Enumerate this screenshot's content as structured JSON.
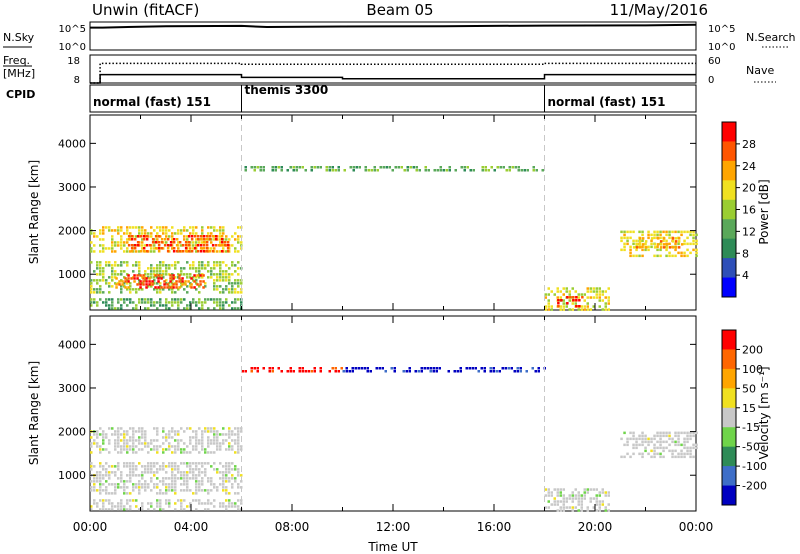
{
  "header": {
    "station": "Unwin (fitACF)",
    "beam": "Beam 05",
    "date": "11/May/2016"
  },
  "status_panels": {
    "nsky_label": "N.Sky",
    "nsky_ticks": [
      "10^5",
      "10^0"
    ],
    "nsearch_label": "N.Search",
    "nsearch_ticks": [
      "10^5",
      "10^0"
    ],
    "freq_label": "Freq.",
    "freq_unit": "[MHz]",
    "freq_ticks": [
      "18",
      "8"
    ],
    "nave_label": "Nave",
    "nave_ticks": [
      "60",
      "0"
    ],
    "cpid_label": "CPID",
    "modes": [
      {
        "label": "normal (fast) 151",
        "start_h": 0,
        "end_h": 6
      },
      {
        "label": "themis 3300",
        "start_h": 6,
        "end_h": 18
      },
      {
        "label": "normal (fast) 151",
        "start_h": 18,
        "end_h": 24
      }
    ]
  },
  "colors": {
    "power": [
      "#0000ff",
      "#2e4fb8",
      "#2e8b57",
      "#5aa85a",
      "#9acd32",
      "#f0e020",
      "#ffa500",
      "#ff5500",
      "#ff0000"
    ],
    "velocity": [
      "#0000c0",
      "#3e6ec8",
      "#2e8b57",
      "#6fd44a",
      "#c8c8c8",
      "#f0e020",
      "#ffa500",
      "#ff6600",
      "#ff0000"
    ]
  },
  "chart_data": [
    {
      "type": "line",
      "title": "N.Sky / N.Search",
      "x": [
        0,
        0.5,
        3,
        6,
        7,
        10,
        14,
        18,
        22,
        24
      ],
      "series": [
        {
          "name": "N.Sky",
          "values": [
            80,
            80,
            85,
            86,
            82,
            84,
            85,
            87,
            88,
            90
          ]
        },
        {
          "name": "N.Search",
          "values": [
            null,
            null,
            null,
            null,
            null,
            null,
            null,
            null,
            null,
            null
          ]
        }
      ],
      "xlim": [
        0,
        24
      ],
      "ylim": [
        0,
        100
      ]
    },
    {
      "type": "line",
      "title": "Freq / Nave",
      "x": [
        0,
        0.4,
        6,
        10,
        18,
        24
      ],
      "series": [
        {
          "name": "Freq.",
          "values": [
            8,
            11,
            10,
            9.5,
            11,
            11
          ]
        },
        {
          "name": "Nave",
          "values": [
            0,
            42,
            40,
            40,
            42,
            42
          ]
        }
      ],
      "xlim": [
        0,
        24
      ]
    },
    {
      "type": "heatmap",
      "ylabel": "Slant Range [km]",
      "xlim": [
        0,
        24
      ],
      "ylim": [
        180,
        4650
      ],
      "yticks": [
        1000,
        2000,
        3000,
        4000
      ],
      "colorbar": {
        "label": "Power [dB]",
        "ticks": [
          "4",
          "8",
          "12",
          "16",
          "20",
          "24",
          "28"
        ],
        "range": [
          0,
          30
        ]
      },
      "regions": [
        {
          "t0": 0.0,
          "t1": 6.0,
          "r0": 1500,
          "r1": 2100,
          "lvl": 5
        },
        {
          "t0": 1.5,
          "t1": 5.5,
          "r0": 1550,
          "r1": 1900,
          "lvl": 7
        },
        {
          "t0": 0.0,
          "t1": 6.0,
          "r0": 600,
          "r1": 1300,
          "lvl": 4
        },
        {
          "t0": 1.0,
          "t1": 4.5,
          "r0": 700,
          "r1": 1000,
          "lvl": 7
        },
        {
          "t0": 0.0,
          "t1": 6.0,
          "r0": 200,
          "r1": 450,
          "lvl": 3
        },
        {
          "t0": 6.0,
          "t1": 18.0,
          "r0": 3400,
          "r1": 3480,
          "lvl": 3
        },
        {
          "t0": 18.0,
          "t1": 20.5,
          "r0": 200,
          "r1": 700,
          "lvl": 5
        },
        {
          "t0": 18.5,
          "t1": 19.5,
          "r0": 250,
          "r1": 500,
          "lvl": 8
        },
        {
          "t0": 21.0,
          "t1": 24.0,
          "r0": 1400,
          "r1": 2000,
          "lvl": 5
        },
        {
          "t0": 21.5,
          "t1": 23.5,
          "r0": 1600,
          "r1": 1850,
          "lvl": 6
        }
      ]
    },
    {
      "type": "heatmap",
      "xlabel": "Time UT",
      "ylabel": "Slant Range [km]",
      "xlim": [
        0,
        24
      ],
      "ylim": [
        180,
        4650
      ],
      "xticks": [
        "00:00",
        "04:00",
        "08:00",
        "12:00",
        "16:00",
        "20:00",
        "00:00"
      ],
      "yticks": [
        1000,
        2000,
        3000,
        4000
      ],
      "colorbar": {
        "label": "Velocity [m s⁻¹]",
        "ticks": [
          "200",
          "100",
          "50",
          "15",
          "-15",
          "-50",
          "-100",
          "-200"
        ],
        "range": [
          -250,
          250
        ]
      },
      "regions": [
        {
          "t0": 0.0,
          "t1": 6.0,
          "r0": 1500,
          "r1": 2100,
          "lvl": 4
        },
        {
          "t0": 0.0,
          "t1": 6.0,
          "r0": 600,
          "r1": 1300,
          "lvl": 4
        },
        {
          "t0": 0.0,
          "t1": 6.0,
          "r0": 200,
          "r1": 450,
          "lvl": 4
        },
        {
          "t0": 6.0,
          "t1": 10.0,
          "r0": 3400,
          "r1": 3480,
          "lvl": 8
        },
        {
          "t0": 10.0,
          "t1": 18.0,
          "r0": 3400,
          "r1": 3480,
          "lvl": 0
        },
        {
          "t0": 18.0,
          "t1": 20.5,
          "r0": 200,
          "r1": 700,
          "lvl": 4
        },
        {
          "t0": 21.0,
          "t1": 24.0,
          "r0": 1400,
          "r1": 2000,
          "lvl": 4
        }
      ]
    }
  ]
}
